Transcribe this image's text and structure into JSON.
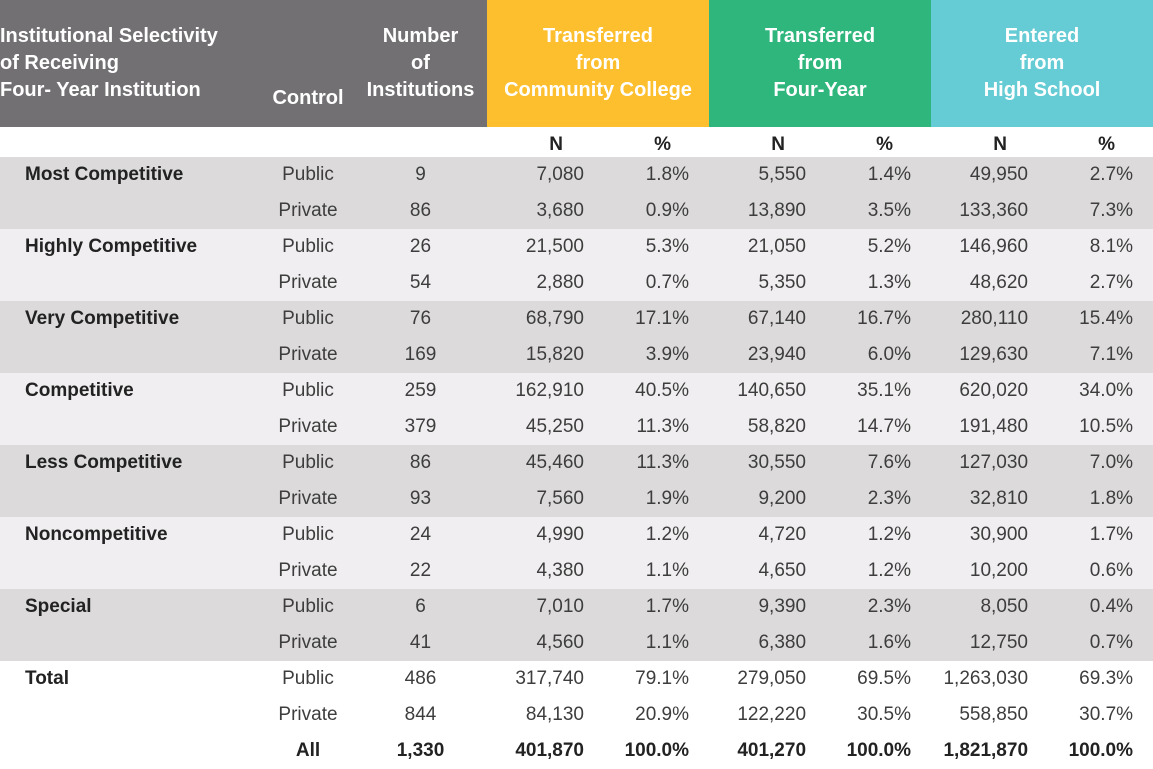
{
  "header": {
    "selectivity": [
      "Institutional Selectivity",
      "of Receiving",
      "Four- Year Institution"
    ],
    "control": "Control",
    "institutions": [
      "Number",
      "of",
      "Institutions"
    ],
    "community_college": [
      "Transferred",
      "from",
      "Community College"
    ],
    "four_year": [
      "Transferred",
      "from",
      "Four-Year"
    ],
    "high_school": [
      "Entered",
      "from",
      "High School"
    ],
    "sub_n": "N",
    "sub_pct": "%"
  },
  "colors": {
    "header_gray": "#737074",
    "community_college": "#fdbf2d",
    "four_year": "#2fb67c",
    "high_school": "#65cbd4",
    "band_dark": "#dcdadb",
    "band_light": "#f0eef0"
  },
  "groups": [
    {
      "label": "Most Competitive",
      "rows": [
        {
          "control": "Public",
          "count": "9",
          "cc_n": "7,080",
          "cc_pct": "1.8%",
          "fy_n": "5,550",
          "fy_pct": "1.4%",
          "hs_n": "49,950",
          "hs_pct": "2.7%"
        },
        {
          "control": "Private",
          "count": "86",
          "cc_n": "3,680",
          "cc_pct": "0.9%",
          "fy_n": "13,890",
          "fy_pct": "3.5%",
          "hs_n": "133,360",
          "hs_pct": "7.3%"
        }
      ]
    },
    {
      "label": "Highly Competitive",
      "rows": [
        {
          "control": "Public",
          "count": "26",
          "cc_n": "21,500",
          "cc_pct": "5.3%",
          "fy_n": "21,050",
          "fy_pct": "5.2%",
          "hs_n": "146,960",
          "hs_pct": "8.1%"
        },
        {
          "control": "Private",
          "count": "54",
          "cc_n": "2,880",
          "cc_pct": "0.7%",
          "fy_n": "5,350",
          "fy_pct": "1.3%",
          "hs_n": "48,620",
          "hs_pct": "2.7%"
        }
      ]
    },
    {
      "label": "Very Competitive",
      "rows": [
        {
          "control": "Public",
          "count": "76",
          "cc_n": "68,790",
          "cc_pct": "17.1%",
          "fy_n": "67,140",
          "fy_pct": "16.7%",
          "hs_n": "280,110",
          "hs_pct": "15.4%"
        },
        {
          "control": "Private",
          "count": "169",
          "cc_n": "15,820",
          "cc_pct": "3.9%",
          "fy_n": "23,940",
          "fy_pct": "6.0%",
          "hs_n": "129,630",
          "hs_pct": "7.1%"
        }
      ]
    },
    {
      "label": "Competitive",
      "rows": [
        {
          "control": "Public",
          "count": "259",
          "cc_n": "162,910",
          "cc_pct": "40.5%",
          "fy_n": "140,650",
          "fy_pct": "35.1%",
          "hs_n": "620,020",
          "hs_pct": "34.0%"
        },
        {
          "control": "Private",
          "count": "379",
          "cc_n": "45,250",
          "cc_pct": "11.3%",
          "fy_n": "58,820",
          "fy_pct": "14.7%",
          "hs_n": "191,480",
          "hs_pct": "10.5%"
        }
      ]
    },
    {
      "label": "Less Competitive",
      "rows": [
        {
          "control": "Public",
          "count": "86",
          "cc_n": "45,460",
          "cc_pct": "11.3%",
          "fy_n": "30,550",
          "fy_pct": "7.6%",
          "hs_n": "127,030",
          "hs_pct": "7.0%"
        },
        {
          "control": "Private",
          "count": "93",
          "cc_n": "7,560",
          "cc_pct": "1.9%",
          "fy_n": "9,200",
          "fy_pct": "2.3%",
          "hs_n": "32,810",
          "hs_pct": "1.8%"
        }
      ]
    },
    {
      "label": "Noncompetitive",
      "rows": [
        {
          "control": "Public",
          "count": "24",
          "cc_n": "4,990",
          "cc_pct": "1.2%",
          "fy_n": "4,720",
          "fy_pct": "1.2%",
          "hs_n": "30,900",
          "hs_pct": "1.7%"
        },
        {
          "control": "Private",
          "count": "22",
          "cc_n": "4,380",
          "cc_pct": "1.1%",
          "fy_n": "4,650",
          "fy_pct": "1.2%",
          "hs_n": "10,200",
          "hs_pct": "0.6%"
        }
      ]
    },
    {
      "label": "Special",
      "rows": [
        {
          "control": "Public",
          "count": "6",
          "cc_n": "7,010",
          "cc_pct": "1.7%",
          "fy_n": "9,390",
          "fy_pct": "2.3%",
          "hs_n": "8,050",
          "hs_pct": "0.4%"
        },
        {
          "control": "Private",
          "count": "41",
          "cc_n": "4,560",
          "cc_pct": "1.1%",
          "fy_n": "6,380",
          "fy_pct": "1.6%",
          "hs_n": "12,750",
          "hs_pct": "0.7%"
        }
      ]
    },
    {
      "label": "Total",
      "rows": [
        {
          "control": "Public",
          "count": "486",
          "cc_n": "317,740",
          "cc_pct": "79.1%",
          "fy_n": "279,050",
          "fy_pct": "69.5%",
          "hs_n": "1,263,030",
          "hs_pct": "69.3%"
        },
        {
          "control": "Private",
          "count": "844",
          "cc_n": "84,130",
          "cc_pct": "20.9%",
          "fy_n": "122,220",
          "fy_pct": "30.5%",
          "hs_n": "558,850",
          "hs_pct": "30.7%"
        },
        {
          "control": "All",
          "count": "1,330",
          "cc_n": "401,870",
          "cc_pct": "100.0%",
          "fy_n": "401,270",
          "fy_pct": "100.0%",
          "hs_n": "1,821,870",
          "hs_pct": "100.0%"
        }
      ]
    }
  ]
}
